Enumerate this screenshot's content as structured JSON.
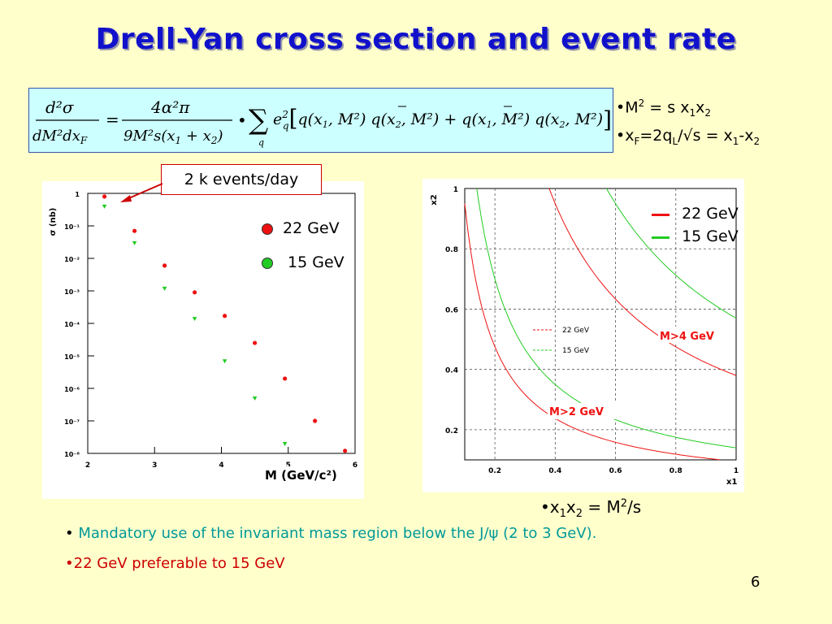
{
  "title": "Drell-Yan cross section and event rate",
  "formula": {
    "lhs_num": "d²σ",
    "lhs_den": "dM²dx_F",
    "rhs_num": "4α²π",
    "rhs_den": "9M²s(x₁ + x₂)",
    "sum": "∑ e_q² [q(x₁,M²) q̄(x₂,M²) + q̄(x₁,M²) q(x₂,M²)]"
  },
  "relations": {
    "line1": {
      "a": "•M",
      "b": "2",
      "c": " = s x",
      "d": "1",
      "e": "x",
      "f": "2"
    },
    "line2": {
      "a": "•x",
      "b": "F",
      "c": "=2q",
      "d": "L",
      "e": "/√s = x",
      "f": "1",
      "g": "-x",
      "h": "2"
    }
  },
  "callout": "2 k events/day",
  "plot1": {
    "legend": [
      {
        "label": "22 GeV",
        "color": "#EE1111"
      },
      {
        "label": "15 GeV",
        "color": "#22CC22"
      }
    ],
    "xlabel": "M (GeV/c²)",
    "ylabel": "σ (nb)"
  },
  "plot2": {
    "legend": [
      {
        "label": "22 GeV",
        "color": "#EE1111"
      },
      {
        "label": "15 GeV",
        "color": "#22CC22"
      }
    ],
    "inner_legend": [
      "22 GeV",
      "15 GeV"
    ],
    "annotation_m4": "M>4 GeV",
    "annotation_m2": "M>2 GeV",
    "xlabel": "x1",
    "ylabel": "x2"
  },
  "x1x2_relation": {
    "a": "•x",
    "b": "1",
    "c": "x",
    "d": "2",
    "e": " = M",
    "f": "2",
    "g": "/s"
  },
  "bullets": {
    "mandatory_prefix": "• ",
    "mandatory": "Mandatory use of the invariant mass region below the  J/ψ (2 to 3 GeV).",
    "preferable": "•22 GeV preferable to 15 GeV"
  },
  "page_number": "6",
  "chart_data": [
    {
      "type": "scatter",
      "xlabel": "M (GeV/c²)",
      "ylabel": "σ (nb)",
      "log_y": true,
      "xlim": [
        2,
        6
      ],
      "ylim": [
        1e-08,
        1
      ],
      "x_ticks": [
        "2",
        "3",
        "4",
        "5",
        "6"
      ],
      "y_ticks": [
        "1",
        "10⁻¹",
        "10⁻²",
        "10⁻³",
        "10⁻⁴",
        "10⁻⁵",
        "10⁻⁶",
        "10⁻⁷",
        "10⁻⁸"
      ],
      "series": [
        {
          "name": "22 GeV",
          "color": "#EE1111",
          "marker": "circle",
          "x": [
            2.25,
            2.7,
            3.15,
            3.6,
            4.05,
            4.5,
            4.95,
            5.4,
            5.85
          ],
          "y": [
            0.8,
            0.07,
            0.006,
            0.0009,
            0.00017,
            2.5e-05,
            2e-06,
            1e-07,
            1.2e-08
          ]
        },
        {
          "name": "15 GeV",
          "color": "#22CC22",
          "marker": "triangle",
          "x": [
            2.25,
            2.7,
            3.15,
            3.6,
            4.05,
            4.5,
            4.95
          ],
          "y": [
            0.4,
            0.03,
            0.0012,
            0.00014,
            7e-06,
            5e-07,
            2e-08
          ]
        }
      ]
    },
    {
      "type": "line",
      "xlabel": "x1",
      "ylabel": "x2",
      "xlim": [
        0.1,
        1.0
      ],
      "ylim": [
        0.1,
        1.0
      ],
      "x_ticks": [
        "0.2",
        "0.4",
        "0.6",
        "0.8",
        "1"
      ],
      "y_ticks": [
        "0.2",
        "0.4",
        "0.6",
        "0.8",
        "1"
      ],
      "grid": true,
      "series": [
        {
          "name": "22 GeV",
          "color": "#EE1111",
          "style": "solid",
          "label": "M>2 GeV",
          "x1x2": 0.095
        },
        {
          "name": "22 GeV",
          "color": "#EE1111",
          "style": "solid",
          "label": "M>4 GeV",
          "x1x2": 0.38
        },
        {
          "name": "15 GeV",
          "color": "#22CC22",
          "style": "solid",
          "label": "M>2 GeV",
          "x1x2": 0.14
        },
        {
          "name": "15 GeV",
          "color": "#22CC22",
          "style": "solid",
          "label": "M>4 GeV",
          "x1x2": 0.57
        }
      ]
    }
  ]
}
